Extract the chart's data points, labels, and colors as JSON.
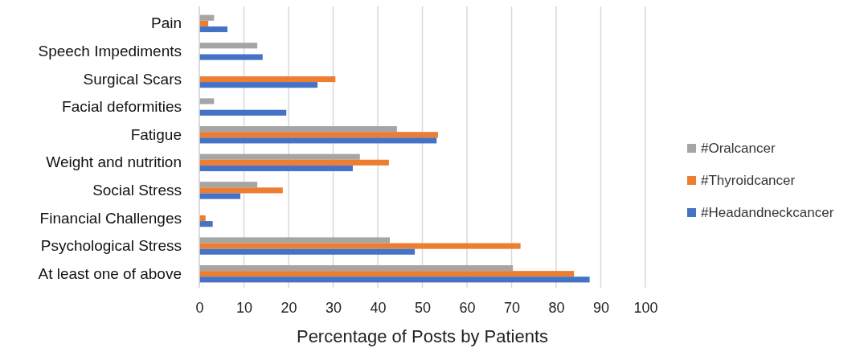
{
  "chart_data": {
    "type": "bar",
    "orientation": "horizontal",
    "xlabel": "Percentage of Posts by Patients",
    "categories": [
      "Pain",
      "Speech Impediments",
      "Surgical Scars",
      "Facial deformities",
      "Fatigue",
      "Weight and nutrition",
      "Social Stress",
      "Financial Challenges",
      "Psychological Stress",
      "At least one of above"
    ],
    "series": [
      {
        "name": "#Oralcancer",
        "color": "#a5a5a5",
        "values": [
          3.3,
          13,
          null,
          3.3,
          44.3,
          36,
          13,
          null,
          42.7,
          70.3
        ]
      },
      {
        "name": "#Thyroidcancer",
        "color": "#ed7d31",
        "values": [
          2,
          null,
          30.5,
          null,
          53.5,
          42.5,
          18.7,
          1.4,
          72,
          84
        ]
      },
      {
        "name": "#Headandneckcancer",
        "color": "#4472c4",
        "values": [
          6.3,
          14.2,
          26.5,
          19.5,
          53.2,
          34.4,
          9.2,
          3,
          48.3,
          87.5
        ]
      }
    ],
    "xlim": [
      0,
      100
    ],
    "xticks": [
      0,
      10,
      20,
      30,
      40,
      50,
      60,
      70,
      80,
      90,
      100
    ],
    "grid": "x",
    "legend": "right"
  }
}
